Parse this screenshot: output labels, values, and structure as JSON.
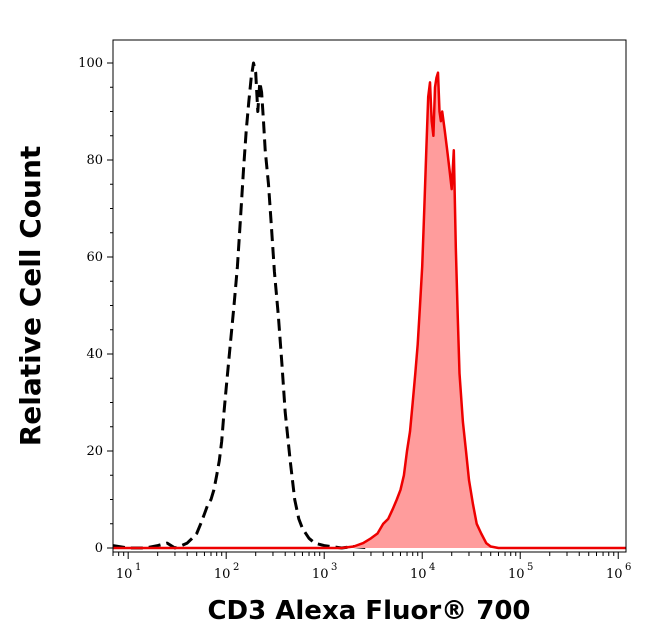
{
  "chart_data": {
    "type": "area",
    "title": "",
    "xlabel": "CD3 Alexa Fluor® 700",
    "ylabel": "Relative Cell Count",
    "x_scale": "log",
    "xlim": [
      7,
      1200000
    ],
    "ylim": [
      0,
      105
    ],
    "grid": false,
    "legend": "none",
    "y_ticks": [
      0,
      20,
      40,
      60,
      80,
      100
    ],
    "x_ticks": [
      {
        "value": 10,
        "base": "10",
        "exp": "1"
      },
      {
        "value": 100,
        "base": "10",
        "exp": "2"
      },
      {
        "value": 1000,
        "base": "10",
        "exp": "3"
      },
      {
        "value": 10000,
        "base": "10",
        "exp": "4"
      },
      {
        "value": 100000,
        "base": "10",
        "exp": "5"
      },
      {
        "value": 1000000,
        "base": "10",
        "exp": "6"
      }
    ],
    "series": [
      {
        "style": "dashed",
        "color": "#000000",
        "fill": "none",
        "points": [
          [
            7,
            0.5
          ],
          [
            10,
            0
          ],
          [
            15,
            0
          ],
          [
            20,
            0.5
          ],
          [
            25,
            1
          ],
          [
            30,
            0
          ],
          [
            35,
            0.5
          ],
          [
            40,
            1
          ],
          [
            45,
            2
          ],
          [
            50,
            3
          ],
          [
            55,
            5
          ],
          [
            60,
            7
          ],
          [
            65,
            9
          ],
          [
            70,
            10
          ],
          [
            75,
            12
          ],
          [
            80,
            15
          ],
          [
            85,
            18
          ],
          [
            90,
            22
          ],
          [
            95,
            28
          ],
          [
            100,
            33
          ],
          [
            110,
            42
          ],
          [
            120,
            50
          ],
          [
            130,
            58
          ],
          [
            140,
            68
          ],
          [
            150,
            78
          ],
          [
            160,
            86
          ],
          [
            170,
            92
          ],
          [
            180,
            97
          ],
          [
            190,
            100
          ],
          [
            200,
            98
          ],
          [
            210,
            90
          ],
          [
            220,
            96
          ],
          [
            230,
            94
          ],
          [
            240,
            88
          ],
          [
            250,
            82
          ],
          [
            270,
            75
          ],
          [
            290,
            66
          ],
          [
            310,
            57
          ],
          [
            340,
            48
          ],
          [
            370,
            38
          ],
          [
            400,
            28
          ],
          [
            450,
            18
          ],
          [
            500,
            10
          ],
          [
            550,
            6
          ],
          [
            600,
            4
          ],
          [
            700,
            2
          ],
          [
            800,
            1
          ],
          [
            1000,
            0.5
          ],
          [
            1500,
            0
          ],
          [
            2000,
            0.3
          ],
          [
            3000,
            0
          ]
        ]
      },
      {
        "style": "solid",
        "color": "#ee0000",
        "fill": "#ff9c9c",
        "points": [
          [
            7,
            0
          ],
          [
            1500,
            0
          ],
          [
            2000,
            0.3
          ],
          [
            2500,
            1
          ],
          [
            3000,
            2
          ],
          [
            3500,
            3
          ],
          [
            4000,
            5
          ],
          [
            4500,
            6
          ],
          [
            5000,
            8
          ],
          [
            5500,
            10
          ],
          [
            6000,
            12
          ],
          [
            6500,
            15
          ],
          [
            7000,
            20
          ],
          [
            7500,
            24
          ],
          [
            8000,
            30
          ],
          [
            8500,
            36
          ],
          [
            9000,
            42
          ],
          [
            9500,
            50
          ],
          [
            10000,
            58
          ],
          [
            10500,
            70
          ],
          [
            11000,
            82
          ],
          [
            11500,
            93
          ],
          [
            12000,
            96
          ],
          [
            12500,
            88
          ],
          [
            13000,
            85
          ],
          [
            13500,
            95
          ],
          [
            14000,
            97
          ],
          [
            14500,
            98
          ],
          [
            15000,
            90
          ],
          [
            15500,
            88
          ],
          [
            16000,
            90
          ],
          [
            17000,
            86
          ],
          [
            18000,
            82
          ],
          [
            19000,
            78
          ],
          [
            20000,
            74
          ],
          [
            21000,
            82
          ],
          [
            22000,
            62
          ],
          [
            23000,
            48
          ],
          [
            24000,
            36
          ],
          [
            26000,
            26
          ],
          [
            28000,
            20
          ],
          [
            30000,
            14
          ],
          [
            33000,
            9
          ],
          [
            36000,
            5
          ],
          [
            40000,
            3
          ],
          [
            45000,
            1
          ],
          [
            50000,
            0.3
          ],
          [
            60000,
            0
          ],
          [
            1200000,
            0
          ]
        ]
      }
    ]
  }
}
